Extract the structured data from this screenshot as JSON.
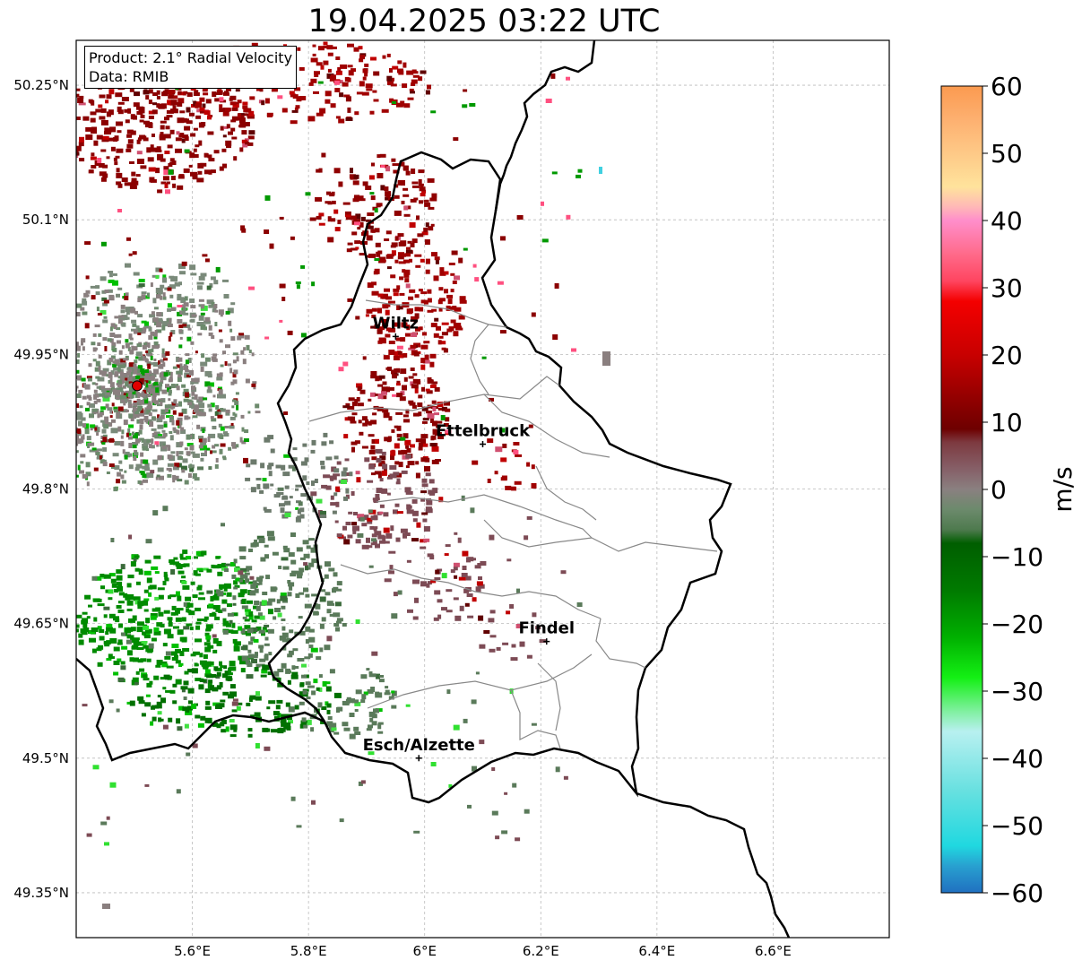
{
  "title": "19.04.2025 03:22 UTC",
  "info": {
    "product": "Product: 2.1° Radial Velocity",
    "data_source": "Data: RMIB"
  },
  "axes": {
    "x_ticks": [
      "5.6°E",
      "5.8°E",
      "6°E",
      "6.2°E",
      "6.4°E",
      "6.6°E"
    ],
    "y_ticks": [
      "50.25°N",
      "50.1°N",
      "49.95°N",
      "49.8°N",
      "49.65°N",
      "49.5°N",
      "49.35°N"
    ],
    "x_range": [
      5.4,
      6.8
    ],
    "y_range": [
      49.3,
      50.3
    ]
  },
  "cities": [
    {
      "name": "Wiltz",
      "lon": 5.95,
      "lat": 49.97
    },
    {
      "name": "Ettelbruck",
      "lon": 6.1,
      "lat": 49.85
    },
    {
      "name": "Findel",
      "lon": 6.21,
      "lat": 49.63
    },
    {
      "name": "Esch/Alzette",
      "lon": 5.99,
      "lat": 49.5
    }
  ],
  "radar": {
    "lon": 5.505,
    "lat": 49.915,
    "color": "#e00000"
  },
  "colorbar": {
    "unit": "m/s",
    "ticks": [
      "60",
      "50",
      "40",
      "30",
      "20",
      "10",
      "0",
      "−10",
      "−20",
      "−30",
      "−40",
      "−50",
      "−60"
    ],
    "range": [
      -60,
      60
    ],
    "stops": [
      {
        "v": 60,
        "c": "#fb9a50"
      },
      {
        "v": 55,
        "c": "#fdb070"
      },
      {
        "v": 50,
        "c": "#fec987"
      },
      {
        "v": 45,
        "c": "#ffe39c"
      },
      {
        "v": 42,
        "c": "#ffb7b7"
      },
      {
        "v": 40,
        "c": "#ff8ecb"
      },
      {
        "v": 35,
        "c": "#ff6a8a"
      },
      {
        "v": 31,
        "c": "#ff4560"
      },
      {
        "v": 28,
        "c": "#f40000"
      },
      {
        "v": 20,
        "c": "#c80000"
      },
      {
        "v": 14,
        "c": "#960000"
      },
      {
        "v": 9,
        "c": "#6e0000"
      },
      {
        "v": 7,
        "c": "#7d3a40"
      },
      {
        "v": 3,
        "c": "#866068"
      },
      {
        "v": 0,
        "c": "#8a8080"
      },
      {
        "v": -3,
        "c": "#6c8a6c"
      },
      {
        "v": -6,
        "c": "#4e7a4e"
      },
      {
        "v": -8,
        "c": "#005e00"
      },
      {
        "v": -15,
        "c": "#007a00"
      },
      {
        "v": -22,
        "c": "#00b000"
      },
      {
        "v": -28,
        "c": "#14f014"
      },
      {
        "v": -33,
        "c": "#80f0a0"
      },
      {
        "v": -36,
        "c": "#b8f0f0"
      },
      {
        "v": -45,
        "c": "#66e0e0"
      },
      {
        "v": -53,
        "c": "#20d8e0"
      },
      {
        "v": -56,
        "c": "#28a0d0"
      },
      {
        "v": -60,
        "c": "#2070c0"
      }
    ]
  },
  "colors": {
    "border": "#000000",
    "canton_lines": "#888888",
    "grid": "#bbbbbb"
  }
}
